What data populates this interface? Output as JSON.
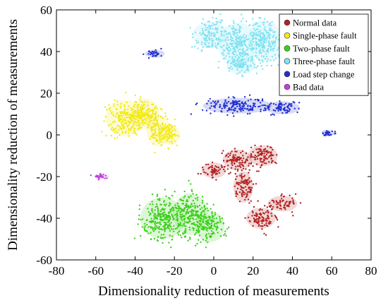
{
  "chart_data": {
    "type": "scatter",
    "title": "",
    "xlabel": "Dimensionality reduction of measurements",
    "ylabel": "Dimensionality reduction of measurements",
    "xlim": [
      -80,
      80
    ],
    "ylim": [
      -60,
      60
    ],
    "xticks": [
      -80,
      -60,
      -40,
      -20,
      0,
      20,
      40,
      60,
      80
    ],
    "yticks": [
      -60,
      -40,
      -20,
      0,
      20,
      40,
      60
    ],
    "grid": false,
    "legend_position": "top-right",
    "series": [
      {
        "name": "Normal data",
        "color": "#b22222",
        "clusters": [
          {
            "center": [
              0,
              -17
            ],
            "spread": [
              5,
              3
            ]
          },
          {
            "center": [
              12,
              -12
            ],
            "spread": [
              6,
              4
            ]
          },
          {
            "center": [
              25,
              -10
            ],
            "spread": [
              6,
              4
            ]
          },
          {
            "center": [
              15,
              -25
            ],
            "spread": [
              4,
              6
            ]
          },
          {
            "center": [
              24,
              -40
            ],
            "spread": [
              6,
              4
            ]
          },
          {
            "center": [
              35,
              -33
            ],
            "spread": [
              6,
              3
            ]
          }
        ]
      },
      {
        "name": "Single-phase fault",
        "color": "#f2ea14",
        "clusters": [
          {
            "center": [
              -45,
              8
            ],
            "spread": [
              8,
              7
            ]
          },
          {
            "center": [
              -35,
              10
            ],
            "spread": [
              6,
              6
            ]
          },
          {
            "center": [
              -28,
              2
            ],
            "spread": [
              5,
              6
            ]
          },
          {
            "center": [
              -22,
              0
            ],
            "spread": [
              4,
              4
            ]
          }
        ]
      },
      {
        "name": "Two-phase fault",
        "color": "#3cd01c",
        "clusters": [
          {
            "center": [
              -26,
              -40
            ],
            "spread": [
              9,
              8
            ]
          },
          {
            "center": [
              -12,
              -38
            ],
            "spread": [
              7,
              8
            ]
          },
          {
            "center": [
              -2,
              -44
            ],
            "spread": [
              6,
              6
            ]
          }
        ]
      },
      {
        "name": "Three-phase fault",
        "color": "#7fe3f2",
        "clusters": [
          {
            "center": [
              -2,
              48
            ],
            "spread": [
              7,
              5
            ]
          },
          {
            "center": [
              12,
              44
            ],
            "spread": [
              8,
              8
            ]
          },
          {
            "center": [
              26,
              45
            ],
            "spread": [
              7,
              8
            ]
          },
          {
            "center": [
              14,
              34
            ],
            "spread": [
              6,
              4
            ]
          }
        ]
      },
      {
        "name": "Load step change",
        "color": "#1f2fd0",
        "clusters": [
          {
            "center": [
              12,
              14
            ],
            "spread": [
              14,
              3
            ]
          },
          {
            "center": [
              35,
              13
            ],
            "spread": [
              7,
              2.5
            ]
          },
          {
            "center": [
              -30,
              39
            ],
            "spread": [
              4,
              1.5
            ]
          },
          {
            "center": [
              58,
              1
            ],
            "spread": [
              2.5,
              1.2
            ]
          }
        ]
      },
      {
        "name": "Bad data",
        "color": "#c33ce3",
        "clusters": [
          {
            "center": [
              -57,
              -20
            ],
            "spread": [
              3,
              0.9
            ]
          }
        ]
      }
    ]
  }
}
